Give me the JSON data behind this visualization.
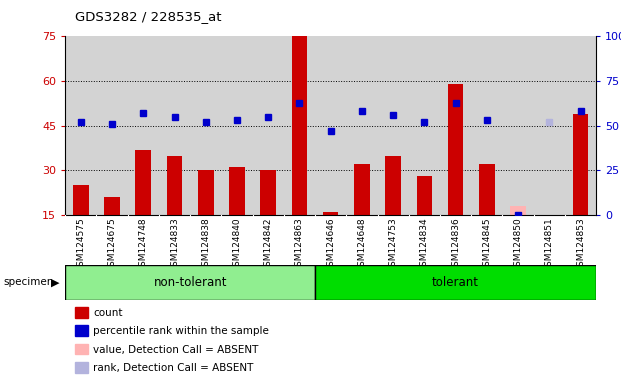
{
  "title": "GDS3282 / 228535_at",
  "samples": [
    "GSM124575",
    "GSM124675",
    "GSM124748",
    "GSM124833",
    "GSM124838",
    "GSM124840",
    "GSM124842",
    "GSM124863",
    "GSM124646",
    "GSM124648",
    "GSM124753",
    "GSM124834",
    "GSM124836",
    "GSM124845",
    "GSM124850",
    "GSM124851",
    "GSM124853"
  ],
  "n_samples": 17,
  "group_sizes": [
    8,
    9
  ],
  "group_labels": [
    "non-tolerant",
    "tolerant"
  ],
  "bar_values": [
    25,
    21,
    37,
    35,
    30,
    31,
    30,
    75,
    16,
    32,
    35,
    28,
    59,
    32,
    18,
    0,
    49
  ],
  "bar_absent": [
    false,
    false,
    false,
    false,
    false,
    false,
    false,
    false,
    false,
    false,
    false,
    false,
    false,
    false,
    true,
    false,
    false
  ],
  "rank_values": [
    52,
    51,
    57,
    55,
    52,
    53,
    55,
    63,
    47,
    58,
    56,
    52,
    63,
    53,
    0,
    52,
    58
  ],
  "rank_absent": [
    false,
    false,
    false,
    false,
    false,
    false,
    false,
    false,
    false,
    false,
    false,
    false,
    false,
    false,
    false,
    true,
    false
  ],
  "ylim_left": [
    15,
    75
  ],
  "ylim_right": [
    0,
    100
  ],
  "yticks_left": [
    15,
    30,
    45,
    60,
    75
  ],
  "yticks_right": [
    0,
    25,
    50,
    75,
    100
  ],
  "bar_color": "#cc0000",
  "bar_absent_color": "#ffb3b3",
  "rank_color": "#0000cc",
  "rank_absent_color": "#b3b3dd",
  "plot_bg": "#ffffff",
  "cell_bg": "#d3d3d3",
  "group_color_nontolerant": "#90ee90",
  "group_color_tolerant": "#00dd00",
  "legend_items": [
    {
      "label": "count",
      "color": "#cc0000"
    },
    {
      "label": "percentile rank within the sample",
      "color": "#0000cc"
    },
    {
      "label": "value, Detection Call = ABSENT",
      "color": "#ffb3b3"
    },
    {
      "label": "rank, Detection Call = ABSENT",
      "color": "#b3b3dd"
    }
  ]
}
